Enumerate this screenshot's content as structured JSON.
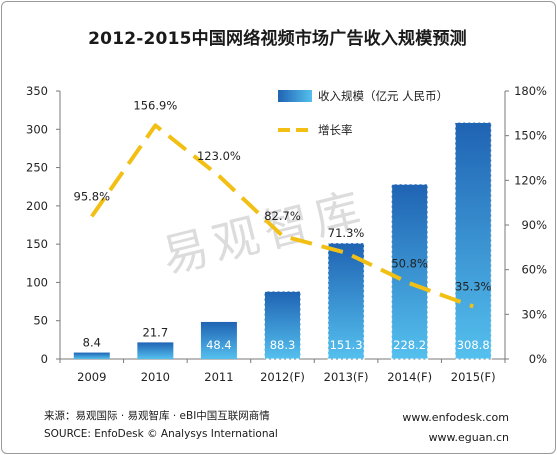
{
  "title": "2012-2015中国网络视频市场广告收入规模预测",
  "chart_data": {
    "type": "bar+line",
    "categories": [
      "2009",
      "2010",
      "2011",
      "2012(F)",
      "2013(F)",
      "2014(F)",
      "2015(F)"
    ],
    "series": [
      {
        "name": "收入规模（亿元 人民币）",
        "type": "bar",
        "axis": "left",
        "values": [
          8.4,
          21.7,
          48.4,
          88.3,
          151.3,
          228.2,
          308.8
        ],
        "labels": [
          "8.4",
          "21.7",
          "48.4",
          "88.3",
          "151.3",
          "228.2",
          "308.8"
        ]
      },
      {
        "name": "增长率",
        "type": "line",
        "axis": "right",
        "values": [
          95.8,
          156.9,
          123.0,
          82.7,
          71.3,
          50.8,
          35.3
        ],
        "labels": [
          "95.8%",
          "156.9%",
          "123.0%",
          "82.7%",
          "71.3%",
          "50.8%",
          "35.3%"
        ]
      }
    ],
    "y_left": {
      "ylim": [
        0,
        350
      ],
      "ticks": [
        "0",
        "50",
        "100",
        "150",
        "200",
        "250",
        "300",
        "350"
      ]
    },
    "y_right": {
      "ylim": [
        0,
        180
      ],
      "ticks": [
        "0%",
        "30%",
        "60%",
        "90%",
        "120%",
        "150%",
        "180%"
      ]
    },
    "legend_placement": "top-right",
    "colors": {
      "bar": "#2b7fd1",
      "bar_light": "#55c0ee",
      "bar_dark": "#1f63b3",
      "line": "#f2c014"
    },
    "watermark": "易观智库"
  },
  "footer": {
    "source_cn": "来源：易观国际 · 易观智库 · eBI中国互联网商情",
    "source_en": "SOURCE:  EnfoDesk © Analysys International",
    "site1": "www.enfodesk.com",
    "site2": "www.eguan.cn"
  }
}
